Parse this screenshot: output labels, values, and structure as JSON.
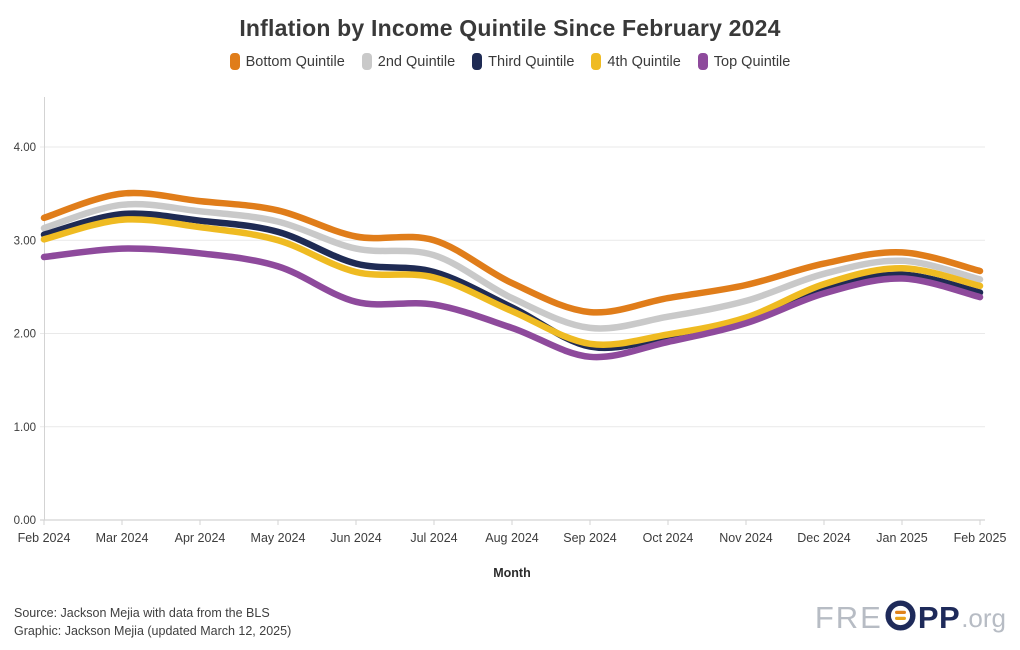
{
  "title": "Inflation by Income Quintile Since February 2024",
  "footer": {
    "source": "Source: Jackson Mejia with data from the BLS",
    "graphic": "Graphic: Jackson Mejia (updated March 12, 2025)"
  },
  "logo": {
    "pre": "FRE",
    "bold": "PP",
    "suffix": ".org"
  },
  "colors": {
    "bottom": "#e07d1a",
    "second": "#c9c9c9",
    "third": "#1f2b54",
    "fourth": "#efbb22",
    "top": "#8e4a9c",
    "gridline": "#e9e9e9",
    "axis": "#d3d3d3",
    "axis_text": "#3c3c3c"
  },
  "chart_data": {
    "type": "line",
    "title": "Inflation by Income Quintile Since February 2024",
    "xlabel": "Month",
    "ylabel": "",
    "grid": true,
    "legend_position": "top",
    "ylim": [
      0,
      4.55
    ],
    "yticks": [
      0,
      1,
      2,
      3,
      4
    ],
    "ytick_format": "0.00",
    "x": [
      "Feb 2024",
      "Mar 2024",
      "Apr 2024",
      "May 2024",
      "Jun 2024",
      "Jul 2024",
      "Aug 2024",
      "Sep 2024",
      "Oct 2024",
      "Nov 2024",
      "Dec 2024",
      "Jan 2025",
      "Feb 2025"
    ],
    "series": [
      {
        "name": "Bottom Quintile",
        "slug": "bottom-quintile",
        "color": "#e07d1a",
        "values": [
          3.24,
          3.5,
          3.42,
          3.32,
          3.04,
          3.0,
          2.54,
          2.23,
          2.38,
          2.52,
          2.75,
          2.87,
          2.67
        ]
      },
      {
        "name": "2nd Quintile",
        "slug": "2nd-quintile",
        "color": "#c9c9c9",
        "values": [
          3.13,
          3.38,
          3.31,
          3.2,
          2.91,
          2.84,
          2.38,
          2.06,
          2.18,
          2.35,
          2.64,
          2.78,
          2.58
        ]
      },
      {
        "name": "Third Quintile",
        "slug": "third-quintile",
        "color": "#1f2b54",
        "values": [
          3.06,
          3.28,
          3.21,
          3.09,
          2.75,
          2.66,
          2.28,
          1.86,
          1.96,
          2.14,
          2.48,
          2.63,
          2.44
        ]
      },
      {
        "name": "4th Quintile",
        "slug": "4th-quintile",
        "color": "#efbb22",
        "values": [
          3.01,
          3.22,
          3.14,
          3.0,
          2.66,
          2.6,
          2.24,
          1.89,
          1.99,
          2.17,
          2.53,
          2.7,
          2.51
        ]
      },
      {
        "name": "Top Quintile",
        "slug": "top-quintile",
        "color": "#8e4a9c",
        "values": [
          2.82,
          2.91,
          2.86,
          2.72,
          2.34,
          2.31,
          2.06,
          1.75,
          1.91,
          2.11,
          2.43,
          2.59,
          2.39
        ]
      }
    ]
  }
}
